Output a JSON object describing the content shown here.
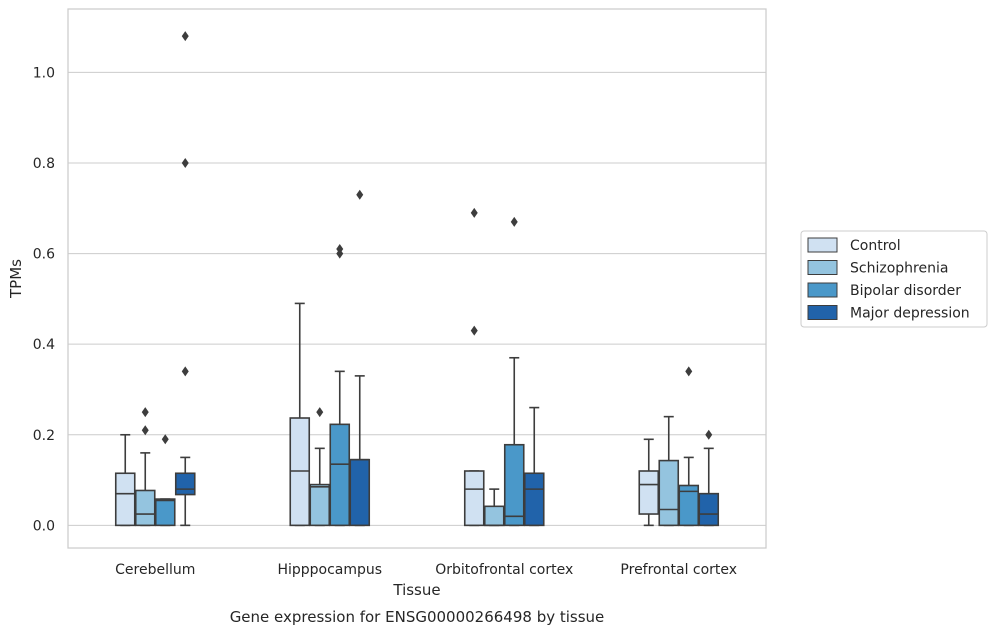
{
  "caption": "Gene expression for ENSG00000266498 by tissue",
  "chart_data": {
    "type": "box",
    "xlabel": "Tissue",
    "ylabel": "TPMs",
    "ylim": [
      -0.05,
      1.14
    ],
    "yticks": [
      "0.0",
      "0.2",
      "0.4",
      "0.6",
      "0.8",
      "1.0"
    ],
    "grid": "horizontal",
    "legend_position": "right",
    "categories": [
      "Cerebellum",
      "Hipppocampus",
      "Orbitofrontal cortex",
      "Prefrontal cortex"
    ],
    "series": [
      {
        "name": "Control",
        "color": "#d0e1f2",
        "boxes": [
          {
            "q1": 0.0,
            "median": 0.07,
            "q3": 0.115,
            "whisker_low": 0.0,
            "whisker_high": 0.2,
            "outliers": []
          },
          {
            "q1": 0.0,
            "median": 0.12,
            "q3": 0.237,
            "whisker_low": 0.0,
            "whisker_high": 0.49,
            "outliers": []
          },
          {
            "q1": 0.0,
            "median": 0.08,
            "q3": 0.12,
            "whisker_low": 0.0,
            "whisker_high": 0.12,
            "outliers": [
              0.43,
              0.69
            ]
          },
          {
            "q1": 0.025,
            "median": 0.09,
            "q3": 0.12,
            "whisker_low": 0.0,
            "whisker_high": 0.19,
            "outliers": []
          }
        ]
      },
      {
        "name": "Schizophrenia",
        "color": "#94c4df",
        "boxes": [
          {
            "q1": 0.0,
            "median": 0.025,
            "q3": 0.077,
            "whisker_low": 0.0,
            "whisker_high": 0.16,
            "outliers": [
              0.21,
              0.25
            ]
          },
          {
            "q1": 0.0,
            "median": 0.085,
            "q3": 0.09,
            "whisker_low": 0.0,
            "whisker_high": 0.17,
            "outliers": [
              0.25
            ]
          },
          {
            "q1": 0.0,
            "median": 0.0,
            "q3": 0.042,
            "whisker_low": 0.0,
            "whisker_high": 0.08,
            "outliers": []
          },
          {
            "q1": 0.0,
            "median": 0.035,
            "q3": 0.143,
            "whisker_low": 0.0,
            "whisker_high": 0.24,
            "outliers": []
          }
        ]
      },
      {
        "name": "Bipolar disorder",
        "color": "#4a98c9",
        "boxes": [
          {
            "q1": 0.0,
            "median": 0.055,
            "q3": 0.058,
            "whisker_low": 0.0,
            "whisker_high": 0.058,
            "outliers": [
              0.19
            ]
          },
          {
            "q1": 0.0,
            "median": 0.135,
            "q3": 0.223,
            "whisker_low": 0.0,
            "whisker_high": 0.34,
            "outliers": [
              0.6,
              0.61
            ]
          },
          {
            "q1": 0.0,
            "median": 0.02,
            "q3": 0.178,
            "whisker_low": 0.0,
            "whisker_high": 0.37,
            "outliers": [
              0.67
            ]
          },
          {
            "q1": 0.0,
            "median": 0.075,
            "q3": 0.088,
            "whisker_low": 0.0,
            "whisker_high": 0.15,
            "outliers": [
              0.34
            ]
          }
        ]
      },
      {
        "name": "Major depression",
        "color": "#2163aa",
        "boxes": [
          {
            "q1": 0.068,
            "median": 0.08,
            "q3": 0.115,
            "whisker_low": 0.0,
            "whisker_high": 0.15,
            "outliers": [
              0.34,
              0.8,
              1.08
            ]
          },
          {
            "q1": 0.0,
            "median": 0.145,
            "q3": 0.145,
            "whisker_low": 0.0,
            "whisker_high": 0.33,
            "outliers": [
              0.73
            ]
          },
          {
            "q1": 0.0,
            "median": 0.08,
            "q3": 0.115,
            "whisker_low": 0.0,
            "whisker_high": 0.26,
            "outliers": []
          },
          {
            "q1": 0.0,
            "median": 0.025,
            "q3": 0.07,
            "whisker_low": 0.0,
            "whisker_high": 0.17,
            "outliers": [
              0.2
            ]
          }
        ]
      }
    ]
  }
}
